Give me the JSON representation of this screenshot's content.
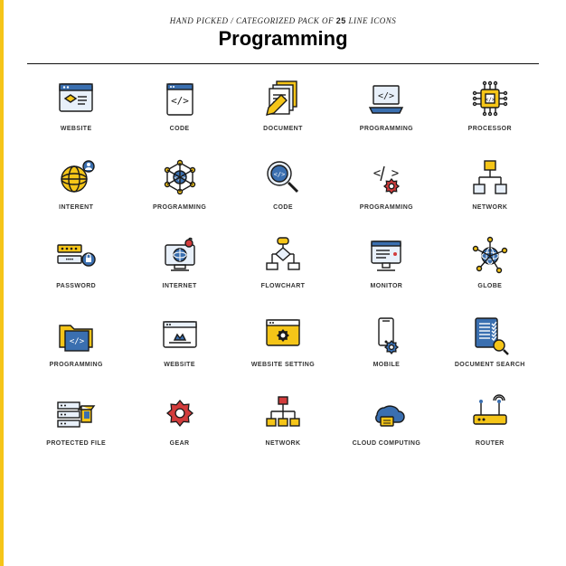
{
  "header": {
    "subtitle_pre": "HAND PICKED / CATEGORIZED PACK OF ",
    "subtitle_count": "25",
    "subtitle_post": " LINE ICONS",
    "title": "Programming"
  },
  "palette": {
    "blue": "#3a6fb0",
    "yellow": "#f5c518",
    "red": "#d23c3c",
    "dark": "#1a1a1a",
    "light": "#e8f0fa"
  },
  "grid": {
    "cols": 5,
    "rows": 5,
    "icon_size": 48,
    "label_fontsize": 7
  },
  "icons": [
    {
      "key": "website",
      "label": "WEBSITE"
    },
    {
      "key": "code",
      "label": "CODE"
    },
    {
      "key": "document",
      "label": "DOCUMENT"
    },
    {
      "key": "programming-laptop",
      "label": "PROGRAMMING"
    },
    {
      "key": "processor",
      "label": "PROCESSOR"
    },
    {
      "key": "internet",
      "label": "INTERENT"
    },
    {
      "key": "programming-net",
      "label": "PROGRAMMING"
    },
    {
      "key": "code-search",
      "label": "CODE"
    },
    {
      "key": "programming-gear",
      "label": "PROGRAMMING"
    },
    {
      "key": "network",
      "label": "NETWORK"
    },
    {
      "key": "password",
      "label": "PASSWORD"
    },
    {
      "key": "internet-pc",
      "label": "INTERNET"
    },
    {
      "key": "flowchart",
      "label": "FLOWCHART"
    },
    {
      "key": "monitor",
      "label": "MONITOR"
    },
    {
      "key": "globe",
      "label": "GLOBE"
    },
    {
      "key": "programming-folder",
      "label": "PROGRAMMING"
    },
    {
      "key": "website-crown",
      "label": "WEBSITE"
    },
    {
      "key": "website-setting",
      "label": "WEBSITE SETTING"
    },
    {
      "key": "mobile",
      "label": "MOBILE"
    },
    {
      "key": "document-search",
      "label": "DOCUMENT SEARCH"
    },
    {
      "key": "protected-file",
      "label": "PROTECTED FILE"
    },
    {
      "key": "gear",
      "label": "GEAR"
    },
    {
      "key": "network-tree",
      "label": "NETWORK"
    },
    {
      "key": "cloud-computing",
      "label": "CLOUD COMPUTING"
    },
    {
      "key": "router",
      "label": "ROUTER"
    }
  ]
}
